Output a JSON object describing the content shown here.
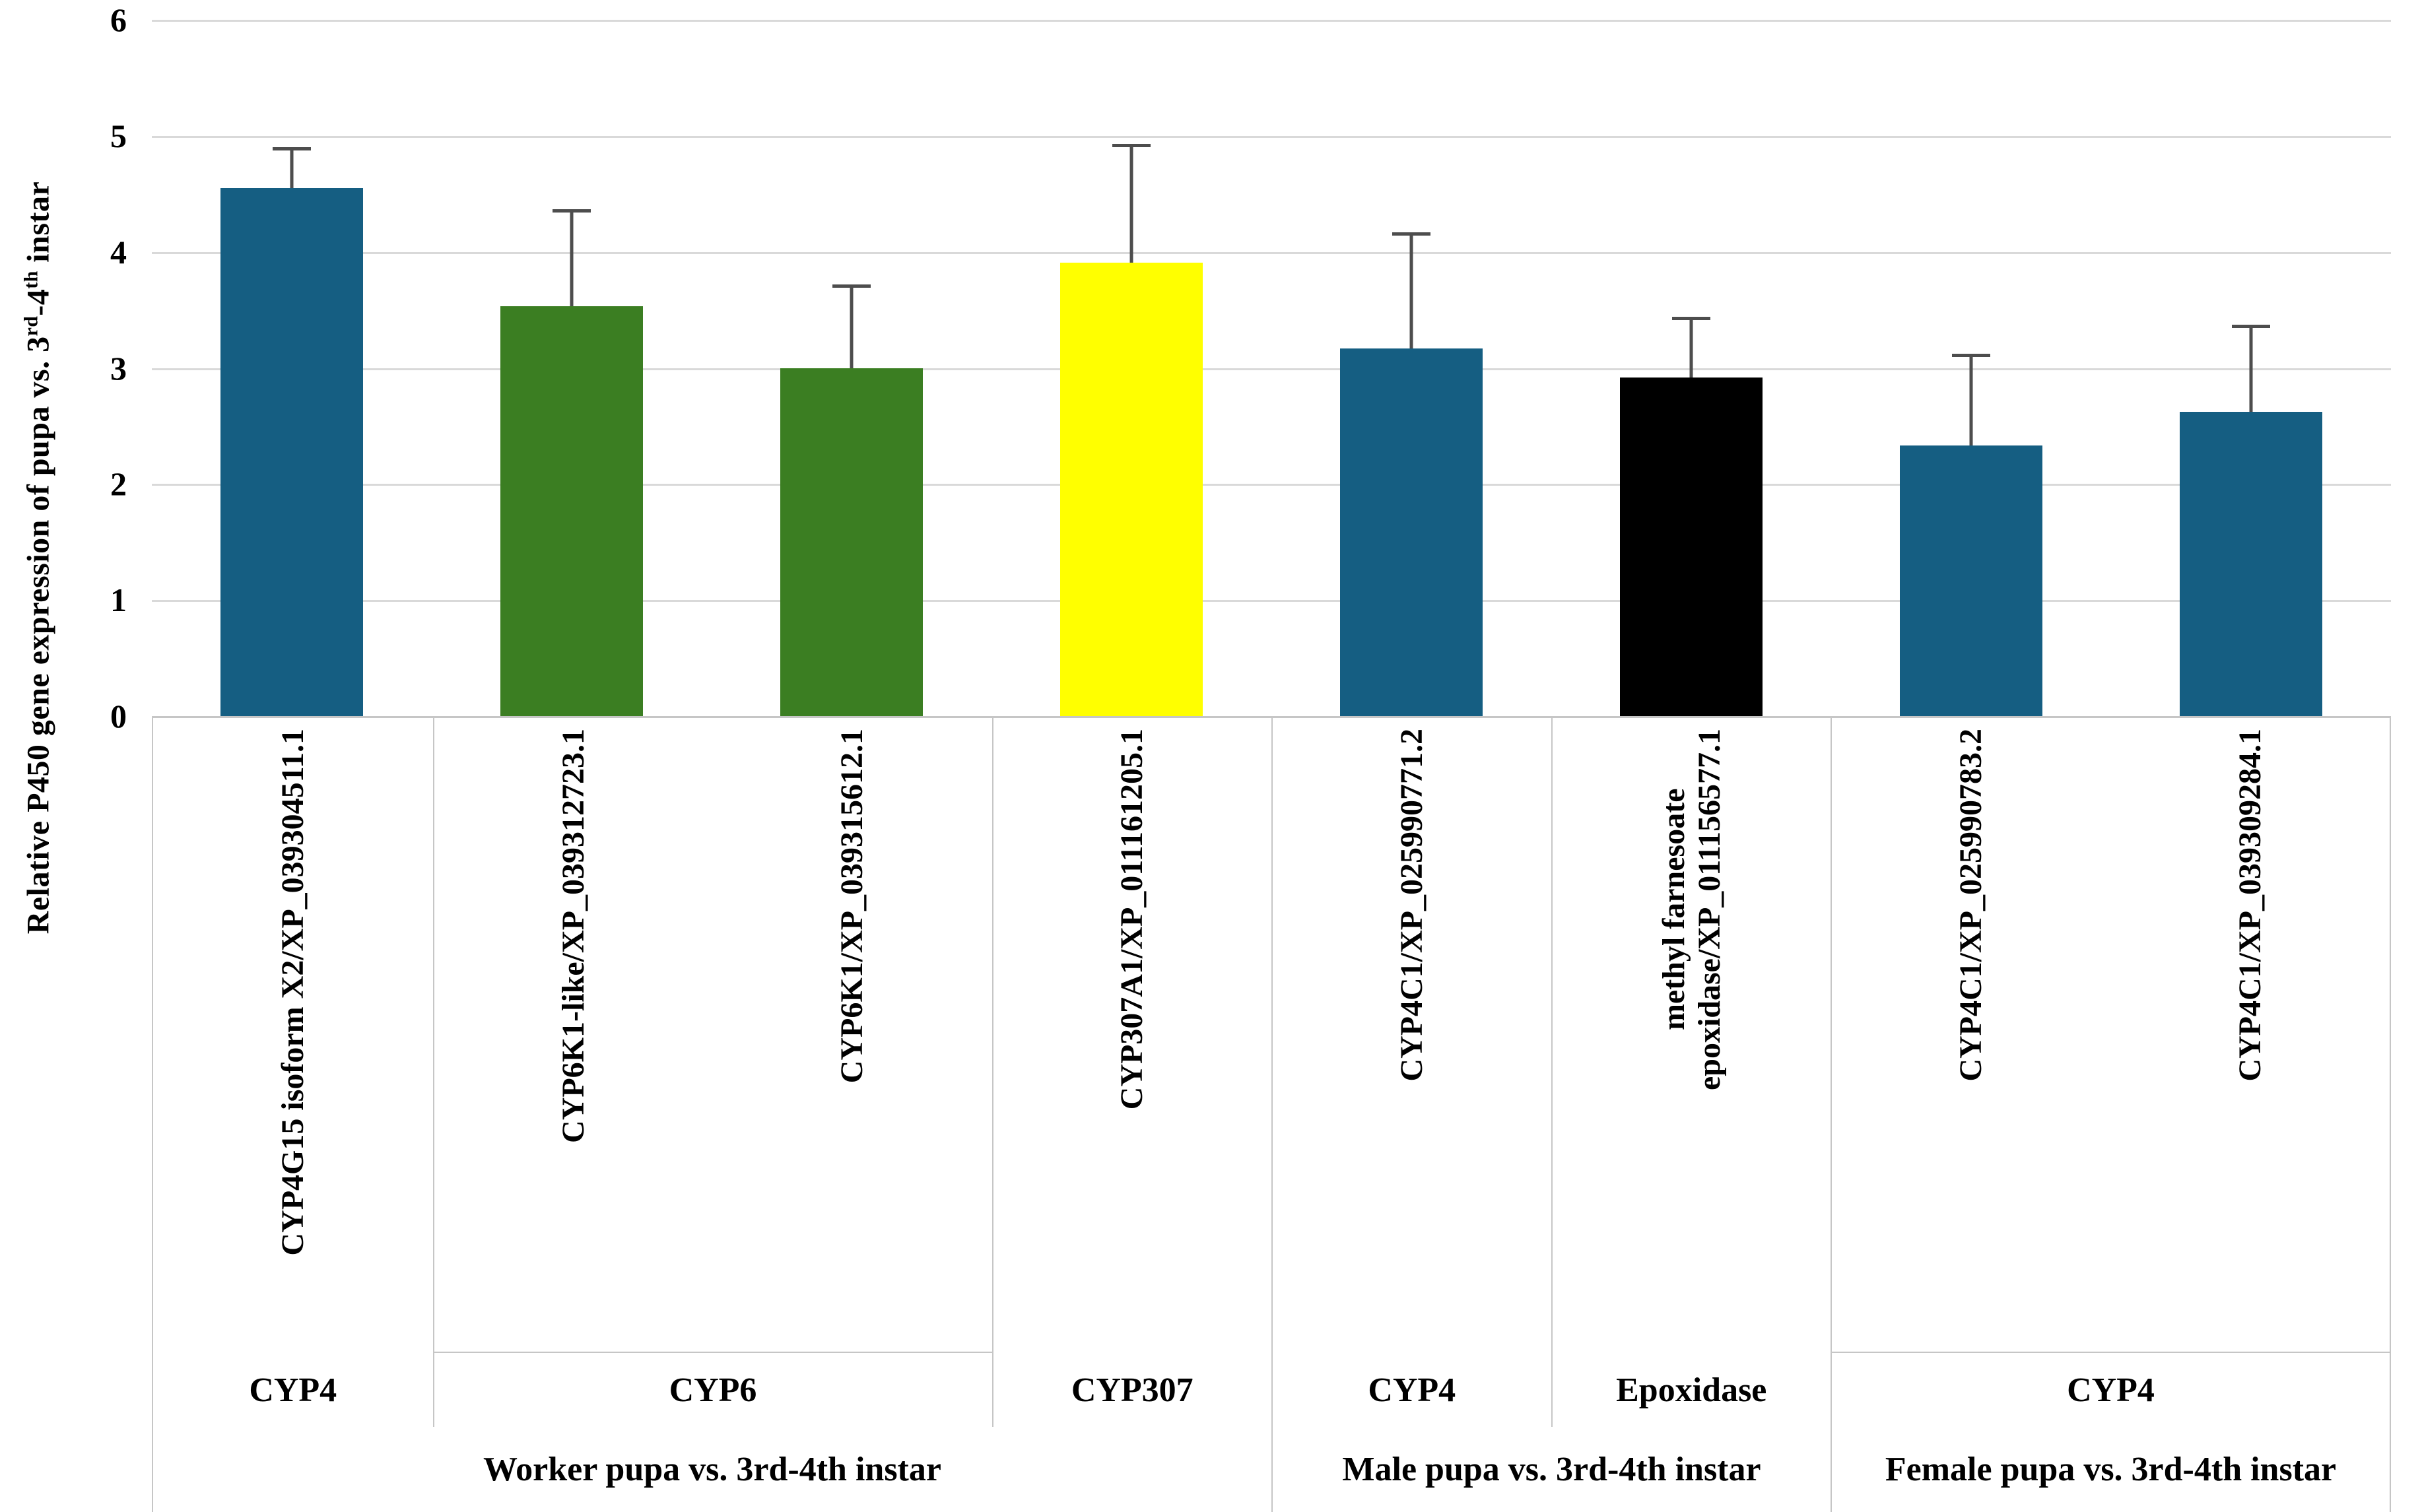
{
  "chart_data": {
    "type": "bar",
    "title": "",
    "ylabel": "Relative P450 gene expression of pupa vs. 3rd-4th instar",
    "ylabel_parts": [
      "Relative P450 gene expression of pupa vs. 3",
      "rd",
      "-4",
      "th",
      " instar"
    ],
    "xlabel": "",
    "ylim": [
      0,
      6
    ],
    "yticks": [
      0,
      1,
      2,
      3,
      4,
      5,
      6
    ],
    "grid": true,
    "legend": false,
    "error_bar_color": "#4d4d4d",
    "gridline_color": "#d9d9d9",
    "categories": [
      "CYP4G15 isoform X2/XP_039304511.1",
      "CYP6K1-like/XP_039312723.1",
      "CYP6K1/XP_039315612.1",
      "CYP307A1/XP_011161205.1",
      "CYP4C1/XP_025990771.2",
      "methyl farnesoate epoxidase/XP_011156577.1",
      "CYP4C1/XP_025990783.2",
      "CYP4C1/XP_039309284.1"
    ],
    "values": [
      4.55,
      3.53,
      3.0,
      3.91,
      3.17,
      2.92,
      2.33,
      2.62
    ],
    "errors": [
      0.35,
      0.84,
      0.72,
      1.02,
      1.0,
      0.52,
      0.79,
      0.75
    ],
    "bar_colors": [
      "#155e82",
      "#3b7e22",
      "#3b7e22",
      "#ffff00",
      "#155e82",
      "#000000",
      "#155e82",
      "#155e82"
    ],
    "bars": [
      {
        "label": "CYP4G15 isoform X2/XP_039304511.1",
        "value": 4.55,
        "error": 0.35,
        "color": "#155e82",
        "family": "CYP4",
        "comparison": "Worker pupa vs. 3rd-4th instar"
      },
      {
        "label": "CYP6K1-like/XP_039312723.1",
        "value": 3.53,
        "error": 0.84,
        "color": "#3b7e22",
        "family": "CYP6",
        "comparison": "Worker pupa vs. 3rd-4th instar"
      },
      {
        "label": "CYP6K1/XP_039315612.1",
        "value": 3.0,
        "error": 0.72,
        "color": "#3b7e22",
        "family": "CYP6",
        "comparison": "Worker pupa vs. 3rd-4th instar"
      },
      {
        "label": "CYP307A1/XP_011161205.1",
        "value": 3.91,
        "error": 1.02,
        "color": "#ffff00",
        "family": "CYP307",
        "comparison": "Worker pupa vs. 3rd-4th instar"
      },
      {
        "label": "CYP4C1/XP_025990771.2",
        "value": 3.17,
        "error": 1.0,
        "color": "#155e82",
        "family": "CYP4",
        "comparison": "Male pupa vs. 3rd-4th instar"
      },
      {
        "label": "methyl farnesoate epoxidase/XP_011156577.1",
        "label_lines": [
          "methyl farnesoate",
          "epoxidase/XP_011156577.1"
        ],
        "value": 2.92,
        "error": 0.52,
        "color": "#000000",
        "family": "Epoxidase",
        "comparison": "Male pupa vs. 3rd-4th instar"
      },
      {
        "label": "CYP4C1/XP_025990783.2",
        "value": 2.33,
        "error": 0.79,
        "color": "#155e82",
        "family": "CYP4",
        "comparison": "Female pupa vs. 3rd-4th instar"
      },
      {
        "label": "CYP4C1/XP_039309284.1",
        "value": 2.62,
        "error": 0.75,
        "color": "#155e82",
        "family": "CYP4",
        "comparison": "Female pupa vs. 3rd-4th instar"
      }
    ],
    "group_row": [
      {
        "label": "CYP4",
        "span": 1
      },
      {
        "label": "CYP6",
        "span": 2
      },
      {
        "label": "CYP307",
        "span": 1
      },
      {
        "label": "CYP4",
        "span": 1
      },
      {
        "label": "Epoxidase",
        "span": 1
      },
      {
        "label": "CYP4",
        "span": 2
      }
    ],
    "comparison_row": [
      {
        "label": "Worker pupa vs. 3rd-4th instar",
        "span": 4
      },
      {
        "label": "Male pupa vs. 3rd-4th instar",
        "span": 2
      },
      {
        "label": "Female pupa vs. 3rd-4th instar",
        "span": 2
      }
    ]
  }
}
